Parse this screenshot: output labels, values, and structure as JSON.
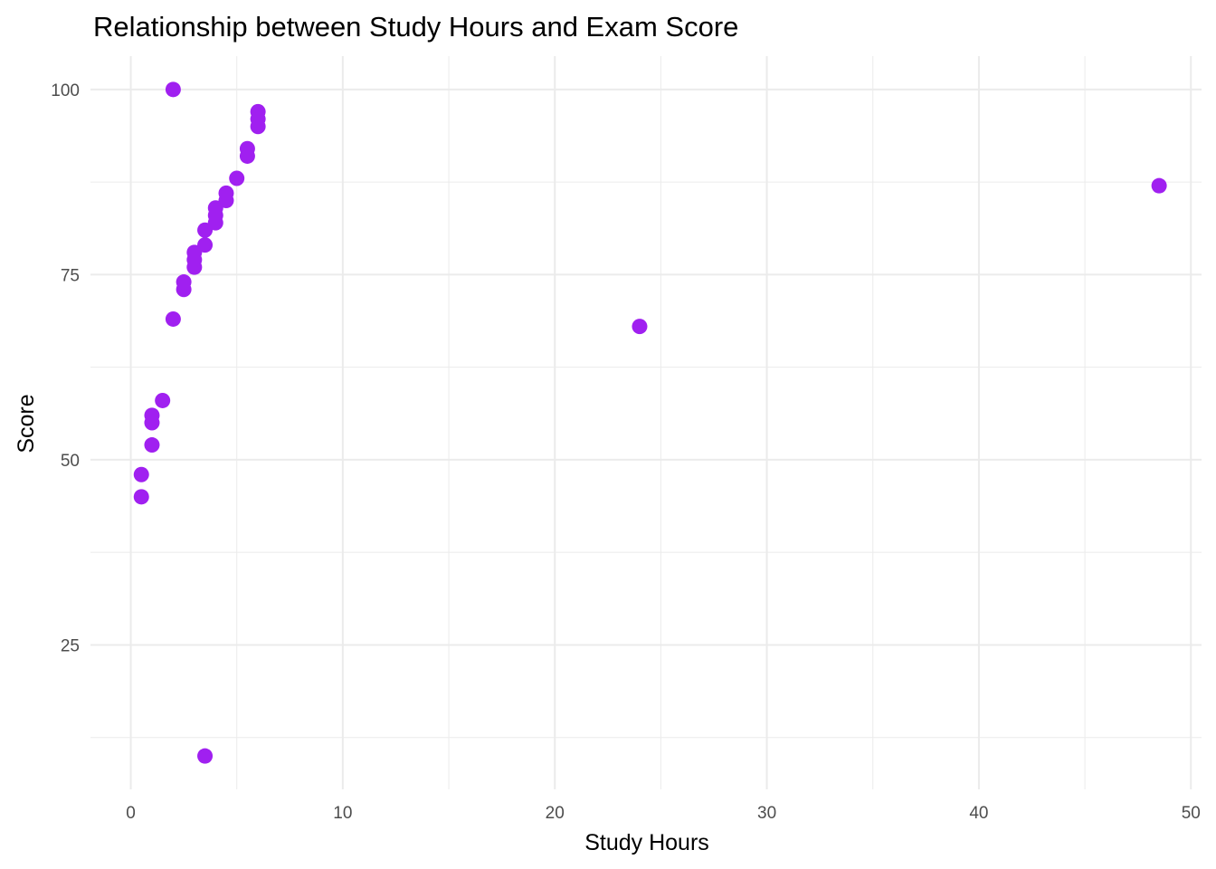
{
  "chart_data": {
    "type": "scatter",
    "title": "Relationship between Study Hours and Exam Score",
    "xlabel": "Study Hours",
    "ylabel": "Score",
    "xlim": [
      -1.9,
      50.5
    ],
    "ylim": [
      5.5,
      104.5
    ],
    "x_ticks": [
      0,
      10,
      20,
      30,
      40,
      50
    ],
    "x_tick_labels": [
      "0",
      "10",
      "20",
      "30",
      "40",
      "50"
    ],
    "y_ticks": [
      25,
      50,
      75,
      100
    ],
    "y_tick_labels": [
      "25",
      "50",
      "75",
      "100"
    ],
    "x_minor_ticks": [
      5,
      15,
      25,
      35,
      45
    ],
    "y_minor_ticks": [
      12.5,
      37.5,
      62.5,
      87.5
    ],
    "grid": true,
    "legend": "none",
    "point_color": "#a020f0",
    "points": [
      {
        "x": 0.5,
        "y": 45
      },
      {
        "x": 0.5,
        "y": 48
      },
      {
        "x": 1.0,
        "y": 52
      },
      {
        "x": 1.0,
        "y": 55
      },
      {
        "x": 1.0,
        "y": 56
      },
      {
        "x": 1.5,
        "y": 58
      },
      {
        "x": 2.0,
        "y": 69
      },
      {
        "x": 2.0,
        "y": 100
      },
      {
        "x": 2.5,
        "y": 73
      },
      {
        "x": 2.5,
        "y": 74
      },
      {
        "x": 3.0,
        "y": 76
      },
      {
        "x": 3.0,
        "y": 77
      },
      {
        "x": 3.0,
        "y": 78
      },
      {
        "x": 3.5,
        "y": 79
      },
      {
        "x": 3.5,
        "y": 81
      },
      {
        "x": 3.5,
        "y": 10
      },
      {
        "x": 4.0,
        "y": 82
      },
      {
        "x": 4.0,
        "y": 83
      },
      {
        "x": 4.0,
        "y": 84
      },
      {
        "x": 4.5,
        "y": 85
      },
      {
        "x": 4.5,
        "y": 86
      },
      {
        "x": 5.0,
        "y": 88
      },
      {
        "x": 5.5,
        "y": 91
      },
      {
        "x": 5.5,
        "y": 92
      },
      {
        "x": 6.0,
        "y": 95
      },
      {
        "x": 6.0,
        "y": 96
      },
      {
        "x": 6.0,
        "y": 97
      },
      {
        "x": 24.0,
        "y": 68
      },
      {
        "x": 48.5,
        "y": 87
      }
    ]
  }
}
